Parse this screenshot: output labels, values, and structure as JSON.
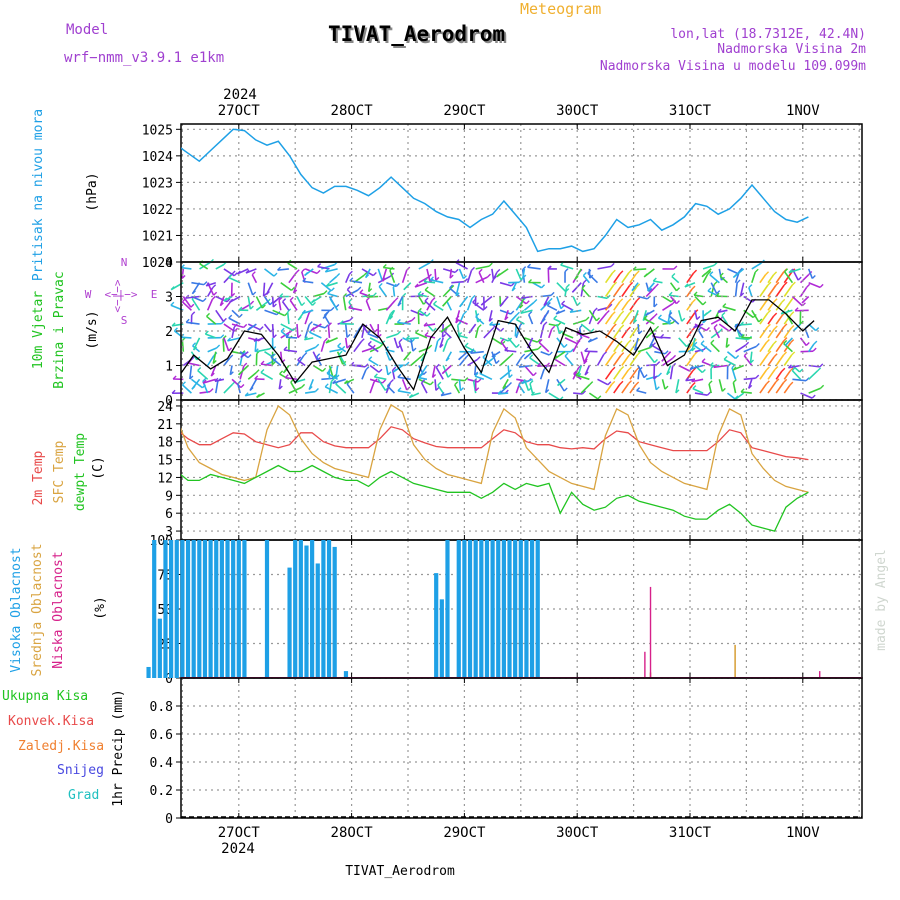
{
  "header": {
    "model_label": "Model",
    "model_name": "wrf−nmm_v3.9.1  e1km",
    "title": "TIVAT_Aerodrom",
    "subtitle": "Meteogram",
    "lonlat": "lon,lat (18.7312E, 42.4N)",
    "elev": "Nadmorska Visina 2m",
    "model_elev": "Nadmorska Visina u modelu 109.099m",
    "bottom_label": "TIVAT_Aerodrom",
    "watermark": "made by Angel"
  },
  "colors": {
    "pressure": "#1ea0e6",
    "temp2m": "#e84a4a",
    "sfc": "#d9a441",
    "dew": "#21c421",
    "high_cloud": "#1ea0e6",
    "mid_cloud": "#d9a441",
    "low_cloud": "#d6208a",
    "wind_label": "#21c421",
    "compass": "#b040d0",
    "title_orange": "#f0b030",
    "model_purple": "#a040d0",
    "zaledj": "#f08030",
    "snijeg": "#4848e0",
    "grad": "#20c0c0"
  },
  "time_axis": {
    "top_year": "2024",
    "bottom_year": "2024",
    "day_labels": [
      "27OCT",
      "28OCT",
      "29OCT",
      "30OCT",
      "31OCT",
      "1NOV"
    ]
  },
  "chart_data": [
    {
      "type": "line",
      "name": "pressure",
      "title": "Pritisak na nivou mora",
      "ylabel": "(hPa)",
      "ylim": [
        1020,
        1025.2
      ],
      "yticks": [
        1020,
        1021,
        1022,
        1023,
        1024,
        1025
      ],
      "x_unit": "days after 26OCT 00UTC",
      "x": [
        -0.55,
        -0.45,
        -0.35,
        -0.25,
        -0.15,
        -0.05,
        0.05,
        0.15,
        0.25,
        0.35,
        0.45,
        0.55,
        0.65,
        0.75,
        0.85,
        0.95,
        1.05,
        1.15,
        1.25,
        1.35,
        1.45,
        1.55,
        1.65,
        1.75,
        1.85,
        1.95,
        2.05,
        2.15,
        2.25,
        2.35,
        2.45,
        2.55,
        2.65,
        2.75,
        2.85,
        2.95,
        3.05,
        3.15,
        3.25,
        3.35,
        3.45,
        3.55,
        3.65,
        3.75,
        3.85,
        3.95,
        4.05,
        4.15,
        4.25,
        4.35,
        4.45,
        4.55,
        4.65,
        4.75,
        4.85,
        4.95,
        5.05,
        5.15,
        5.25,
        5.35,
        5.45,
        5.55,
        5.65,
        5.75,
        5.85,
        5.95,
        6.05
      ],
      "series": [
        {
          "values": [
            1022.9,
            1022.6,
            1022.6,
            1022.9,
            1023.3,
            1023.4,
            1023.6,
            1023.3,
            1023.7,
            1024.1,
            1024.4,
            1024.1,
            1023.8,
            1024.2,
            1024.6,
            1025.0,
            1024.95,
            1024.6,
            1024.4,
            1024.55,
            1024.0,
            1023.3,
            1022.8,
            1022.6,
            1022.85,
            1022.85,
            1022.7,
            1022.5,
            1022.8,
            1023.2,
            1022.8,
            1022.4,
            1022.2,
            1021.9,
            1021.7,
            1021.6,
            1021.3,
            1021.6,
            1021.8,
            1022.3,
            1021.8,
            1021.3,
            1020.4,
            1020.5,
            1020.5,
            1020.6,
            1020.4,
            1020.5,
            1021.0,
            1021.6,
            1021.3,
            1021.4,
            1021.6,
            1021.2,
            1021.4,
            1021.7,
            1022.2,
            1022.1,
            1021.8,
            1022.0,
            1022.4,
            1022.9,
            1022.4,
            1021.9,
            1021.6,
            1021.5,
            1021.7
          ]
        }
      ]
    },
    {
      "type": "line",
      "name": "wind",
      "title": "10m Vjetar Brzina i Pravac",
      "ylabel": "(m/s)",
      "compass": {
        "n": "N",
        "e": "E",
        "s": "S",
        "w": "W",
        "glyph": "<−|−>"
      },
      "ylim": [
        0,
        4
      ],
      "yticks": [
        0,
        1,
        2,
        3,
        4
      ],
      "x": [
        -0.6,
        -0.45,
        -0.3,
        -0.15,
        0.0,
        0.15,
        0.3,
        0.45,
        0.6,
        0.75,
        0.9,
        1.05,
        1.2,
        1.35,
        1.5,
        1.65,
        1.8,
        1.95,
        2.1,
        2.25,
        2.4,
        2.55,
        2.7,
        2.85,
        3.0,
        3.15,
        3.3,
        3.45,
        3.6,
        3.75,
        3.9,
        4.05,
        4.2,
        4.35,
        4.5,
        4.65,
        4.8,
        4.95,
        5.1,
        5.25,
        5.4,
        5.55,
        5.7,
        5.85,
        6.0,
        6.1
      ],
      "series": [
        {
          "values": [
            1.3,
            1.2,
            0.8,
            1.5,
            2.1,
            2.1,
            1.0,
            0.6,
            1.3,
            0.9,
            1.2,
            2.0,
            1.9,
            1.3,
            0.5,
            1.1,
            1.2,
            1.3,
            2.2,
            1.8,
            1.0,
            0.3,
            1.8,
            2.4,
            1.5,
            0.8,
            2.3,
            2.2,
            1.4,
            0.8,
            2.1,
            1.9,
            2.0,
            1.7,
            1.3,
            2.1,
            1.0,
            1.3,
            2.3,
            2.4,
            2.0,
            2.9,
            2.9,
            2.5,
            2.0,
            2.3
          ]
        }
      ]
    },
    {
      "type": "line",
      "name": "temperature",
      "title": "2m Temp / SFC Temp / dewpt Temp",
      "ylabel": "(C)",
      "ylim": [
        1.5,
        25
      ],
      "yticks": [
        3,
        6,
        9,
        12,
        15,
        18,
        21,
        24
      ],
      "x": [
        -0.55,
        -0.45,
        -0.35,
        -0.25,
        -0.15,
        -0.05,
        0.05,
        0.15,
        0.25,
        0.35,
        0.45,
        0.55,
        0.65,
        0.75,
        0.85,
        0.95,
        1.05,
        1.15,
        1.25,
        1.35,
        1.45,
        1.55,
        1.65,
        1.75,
        1.85,
        1.95,
        2.05,
        2.15,
        2.25,
        2.35,
        2.45,
        2.55,
        2.65,
        2.75,
        2.85,
        2.95,
        3.05,
        3.15,
        3.25,
        3.35,
        3.45,
        3.55,
        3.65,
        3.75,
        3.85,
        3.95,
        4.05,
        4.15,
        4.25,
        4.35,
        4.45,
        4.55,
        4.65,
        4.75,
        4.85,
        4.95,
        5.05,
        5.15,
        5.25,
        5.35,
        5.45,
        5.55,
        5.65,
        5.75,
        5.85,
        5.95,
        6.05
      ],
      "series": [
        {
          "name": "2m Temp",
          "values": [
            22.0,
            20.5,
            19.5,
            18.5,
            18.5,
            18.0,
            17.5,
            18.0,
            19.0,
            20.3,
            20.0,
            18.5,
            17.5,
            17.5,
            18.5,
            19.5,
            19.3,
            18.0,
            17.5,
            17.0,
            17.5,
            19.5,
            19.5,
            18.0,
            17.3,
            17.0,
            17.0,
            17.0,
            18.5,
            20.5,
            20.0,
            18.5,
            17.8,
            17.2,
            17.0,
            17.0,
            17.0,
            17.0,
            18.5,
            20.0,
            19.5,
            18.0,
            17.5,
            17.5,
            17.0,
            16.8,
            17.0,
            16.8,
            18.5,
            19.8,
            19.5,
            18.0,
            17.5,
            17.0,
            16.5,
            16.5,
            16.5,
            16.5,
            18.0,
            20.0,
            19.5,
            17.0,
            16.5,
            16.0,
            15.5,
            15.3,
            15.0
          ]
        },
        {
          "name": "SFC Temp",
          "values": [
            24.0,
            20.0,
            17.5,
            16.0,
            15.0,
            13.0,
            12.0,
            11.5,
            20.0,
            23.5,
            22.0,
            17.0,
            14.5,
            13.5,
            12.5,
            12.0,
            11.5,
            12.0,
            20.0,
            24.0,
            22.5,
            18.5,
            16.0,
            14.5,
            13.5,
            13.0,
            12.5,
            12.0,
            20.0,
            24.2,
            23.0,
            17.5,
            15.0,
            13.5,
            12.5,
            12.0,
            11.5,
            11.0,
            19.5,
            23.5,
            22.0,
            17.0,
            15.0,
            13.0,
            12.0,
            11.0,
            10.5,
            10.0,
            19.0,
            23.5,
            22.5,
            17.5,
            14.5,
            13.0,
            12.0,
            11.0,
            10.5,
            10.0,
            19.0,
            23.5,
            22.5,
            16.0,
            13.5,
            11.5,
            10.5,
            10.0,
            9.5
          ]
        },
        {
          "name": "dewpt Temp",
          "values": [
            16.5,
            16.5,
            15.5,
            13.0,
            12.0,
            10.5,
            10.0,
            9.5,
            12.0,
            14.0,
            13.0,
            11.5,
            11.5,
            12.5,
            12.0,
            11.5,
            11.0,
            12.0,
            13.0,
            14.0,
            13.0,
            13.0,
            14.0,
            13.0,
            12.0,
            11.5,
            11.5,
            10.5,
            12.0,
            13.0,
            12.0,
            11.0,
            10.5,
            10.0,
            9.5,
            9.5,
            9.5,
            8.5,
            9.5,
            11.0,
            10.0,
            11.0,
            10.5,
            11.0,
            6.0,
            9.5,
            7.5,
            6.5,
            7.0,
            8.5,
            9.0,
            8.0,
            7.5,
            7.0,
            6.5,
            5.5,
            5.0,
            5.0,
            6.5,
            7.5,
            6.0,
            4.0,
            3.5,
            3.0,
            7.0,
            8.5,
            9.5
          ]
        }
      ]
    },
    {
      "type": "bar",
      "name": "cloud",
      "title": "Visoka Oblacnost / Srednja Oblacnost / Niska Oblacnost",
      "ylabel": "(%)",
      "ylim": [
        0,
        100
      ],
      "yticks": [
        0,
        25,
        50,
        75,
        100
      ],
      "series": [
        {
          "name": "Visoka Oblacnost",
          "x": [
            0.2,
            0.25,
            0.3,
            0.35,
            0.4,
            0.45,
            0.5,
            0.55,
            0.6,
            0.65,
            0.7,
            0.75,
            0.8,
            0.85,
            0.9,
            0.95,
            1.0,
            1.05,
            1.25,
            1.45,
            1.5,
            1.55,
            1.6,
            1.65,
            1.7,
            1.75,
            1.8,
            1.85,
            1.95,
            2.75,
            2.8,
            2.85,
            2.95,
            3.0,
            3.05,
            3.1,
            3.15,
            3.2,
            3.25,
            3.3,
            3.35,
            3.4,
            3.45,
            3.5,
            3.55,
            3.6,
            3.65
          ],
          "values": [
            8,
            100,
            43,
            100,
            100,
            100,
            100,
            100,
            100,
            100,
            100,
            100,
            100,
            100,
            100,
            100,
            100,
            100,
            100,
            80,
            100,
            100,
            96,
            100,
            83,
            100,
            100,
            95,
            5,
            76,
            57,
            100,
            100,
            100,
            100,
            100,
            100,
            100,
            100,
            100,
            100,
            100,
            100,
            100,
            100,
            100,
            100
          ]
        },
        {
          "name": "Srednja Oblacnost",
          "x": [
            4.65,
            5.4
          ],
          "values": [
            4,
            24
          ]
        },
        {
          "name": "Niska Oblacnost",
          "x": [
            4.6,
            4.65,
            6.15
          ],
          "values": [
            19,
            66,
            5
          ]
        }
      ]
    },
    {
      "type": "line",
      "name": "precip",
      "title": "Ukupna Kisa / Konvek.Kisa / Zaledj.Kisa / Snijeg / Grad",
      "ylabel": "1hr Precip (mm)",
      "ylim": [
        0,
        1
      ],
      "yticks": [
        0,
        0.2,
        0.4,
        0.6,
        0.8
      ],
      "series": [
        {
          "name": "Ukupna Kisa",
          "values": [
            0
          ]
        },
        {
          "name": "Konvek.Kisa",
          "values": [
            0
          ]
        },
        {
          "name": "Zaledj.Kisa",
          "values": [
            0
          ]
        },
        {
          "name": "Snijeg",
          "values": [
            0
          ]
        },
        {
          "name": "Grad",
          "values": [
            0
          ]
        }
      ]
    }
  ],
  "side_labels": {
    "pressure": [
      "Pritisak na nivou mora"
    ],
    "wind": [
      "10m Vjetar",
      "Brzina i Pravac"
    ],
    "temp": [
      "2m Temp",
      "SFC Temp",
      "dewpt Temp"
    ],
    "cloud": [
      "Visoka Oblacnost",
      "Srednja Oblacnost",
      "Niska Oblacnost"
    ],
    "precip": [
      "Ukupna Kisa",
      "Konvek.Kisa",
      "Zaledj.Kisa",
      "Snijeg",
      "Grad"
    ]
  }
}
